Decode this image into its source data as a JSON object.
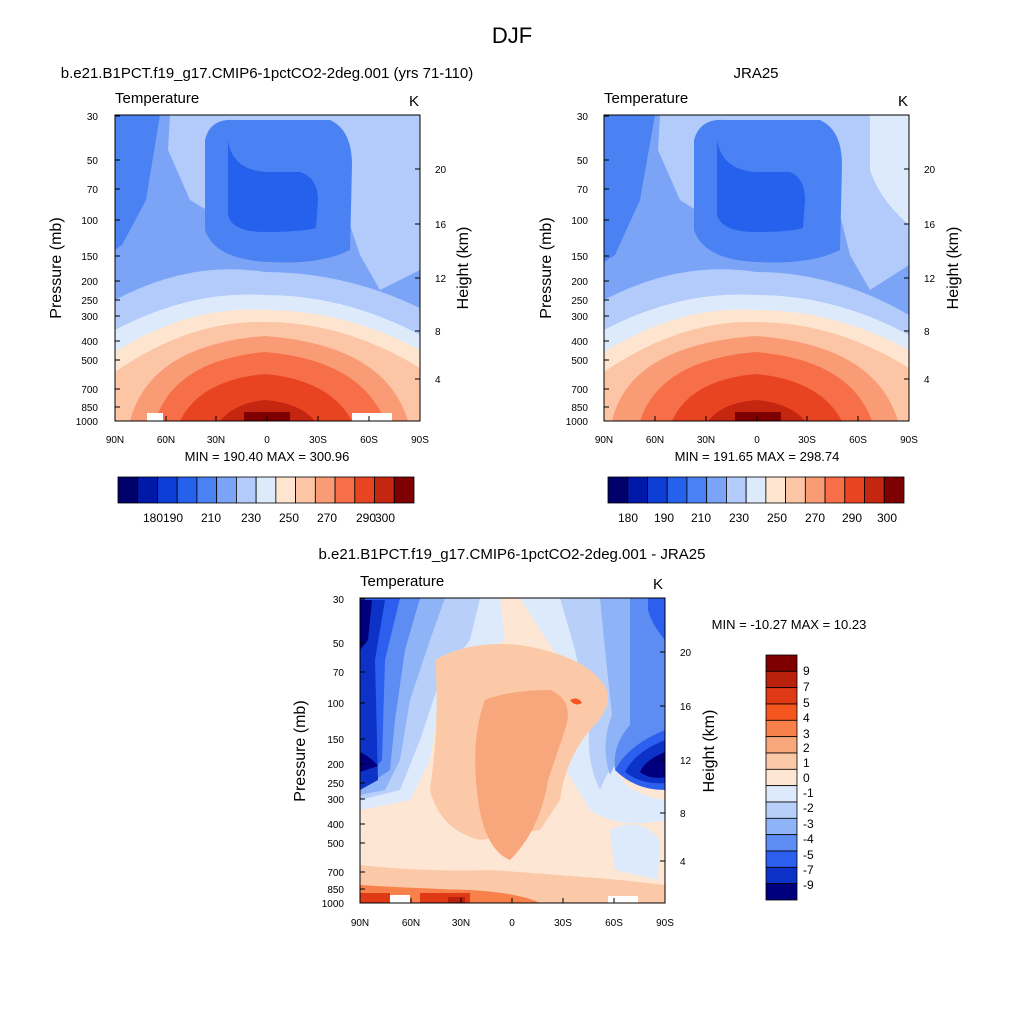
{
  "figure": {
    "title": "DJF"
  },
  "chart_data": [
    {
      "type": "heatmap",
      "title": "b.e21.B1PCT.f19_g17.CMIP6-1pctCO2-2deg.001 (yrs 71-110)",
      "left_label": "Temperature",
      "unit_label": "K",
      "ylabel": "Pressure (mb)",
      "right_ylabel": "Height (km)",
      "x_ticks": [
        "90N",
        "60N",
        "30N",
        "0",
        "30S",
        "60S",
        "90S"
      ],
      "y_ticks": [
        "30",
        "50",
        "70",
        "100",
        "150",
        "200",
        "250",
        "300",
        "400",
        "500",
        "700",
        "850",
        "1000"
      ],
      "height_ticks": [
        "20",
        "16",
        "12",
        "8",
        "4"
      ],
      "stats": "MIN = 190.40  MAX = 300.96",
      "min": 190.4,
      "max": 300.96,
      "colorbar_labels": [
        "180",
        "190",
        "210",
        "230",
        "250",
        "270",
        "290",
        "300"
      ]
    },
    {
      "type": "heatmap",
      "title": "JRA25",
      "left_label": "Temperature",
      "unit_label": "K",
      "ylabel": "Pressure (mb)",
      "right_ylabel": "Height (km)",
      "x_ticks": [
        "90N",
        "60N",
        "30N",
        "0",
        "30S",
        "60S",
        "90S"
      ],
      "y_ticks": [
        "30",
        "50",
        "70",
        "100",
        "150",
        "200",
        "250",
        "300",
        "400",
        "500",
        "700",
        "850",
        "1000"
      ],
      "height_ticks": [
        "20",
        "16",
        "12",
        "8",
        "4"
      ],
      "stats": "MIN = 191.65  MAX = 298.74",
      "min": 191.65,
      "max": 298.74,
      "colorbar_labels": [
        "180",
        "190",
        "210",
        "230",
        "250",
        "270",
        "290",
        "300"
      ]
    },
    {
      "type": "heatmap",
      "title": "b.e21.B1PCT.f19_g17.CMIP6-1pctCO2-2deg.001 - JRA25",
      "left_label": "Temperature",
      "unit_label": "K",
      "ylabel": "Pressure (mb)",
      "right_ylabel": "Height (km)",
      "x_ticks": [
        "90N",
        "60N",
        "30N",
        "0",
        "30S",
        "60S",
        "90S"
      ],
      "y_ticks": [
        "30",
        "50",
        "70",
        "100",
        "150",
        "200",
        "250",
        "300",
        "400",
        "500",
        "700",
        "850",
        "1000"
      ],
      "height_ticks": [
        "20",
        "16",
        "12",
        "8",
        "4"
      ],
      "stats": "MIN = -10.27  MAX =  10.23",
      "min": -10.27,
      "max": 10.23,
      "colorbar_labels": [
        "9",
        "7",
        "5",
        "4",
        "3",
        "2",
        "1",
        "0",
        "-1",
        "-2",
        "-3",
        "-4",
        "-5",
        "-7",
        "-9"
      ]
    }
  ],
  "colors": {
    "abs_levels": [
      "#00006b",
      "#0019a8",
      "#0d3fd6",
      "#2561ec",
      "#4a82f3",
      "#7ba4f7",
      "#b2cbfa",
      "#ddeafb",
      "#fde5cf",
      "#fcc5a5",
      "#f99c76",
      "#f66f48",
      "#e94421",
      "#c4260f",
      "#7f0000"
    ],
    "diff_levels": [
      "#7f0000",
      "#b9210d",
      "#e03915",
      "#f5561f",
      "#f8804a",
      "#f8a67b",
      "#fbc9a8",
      "#fde6d3",
      "#ddeafb",
      "#b8cff9",
      "#8fb3f7",
      "#5d8cf3",
      "#2d5fef",
      "#0d32c8",
      "#00007f"
    ]
  }
}
